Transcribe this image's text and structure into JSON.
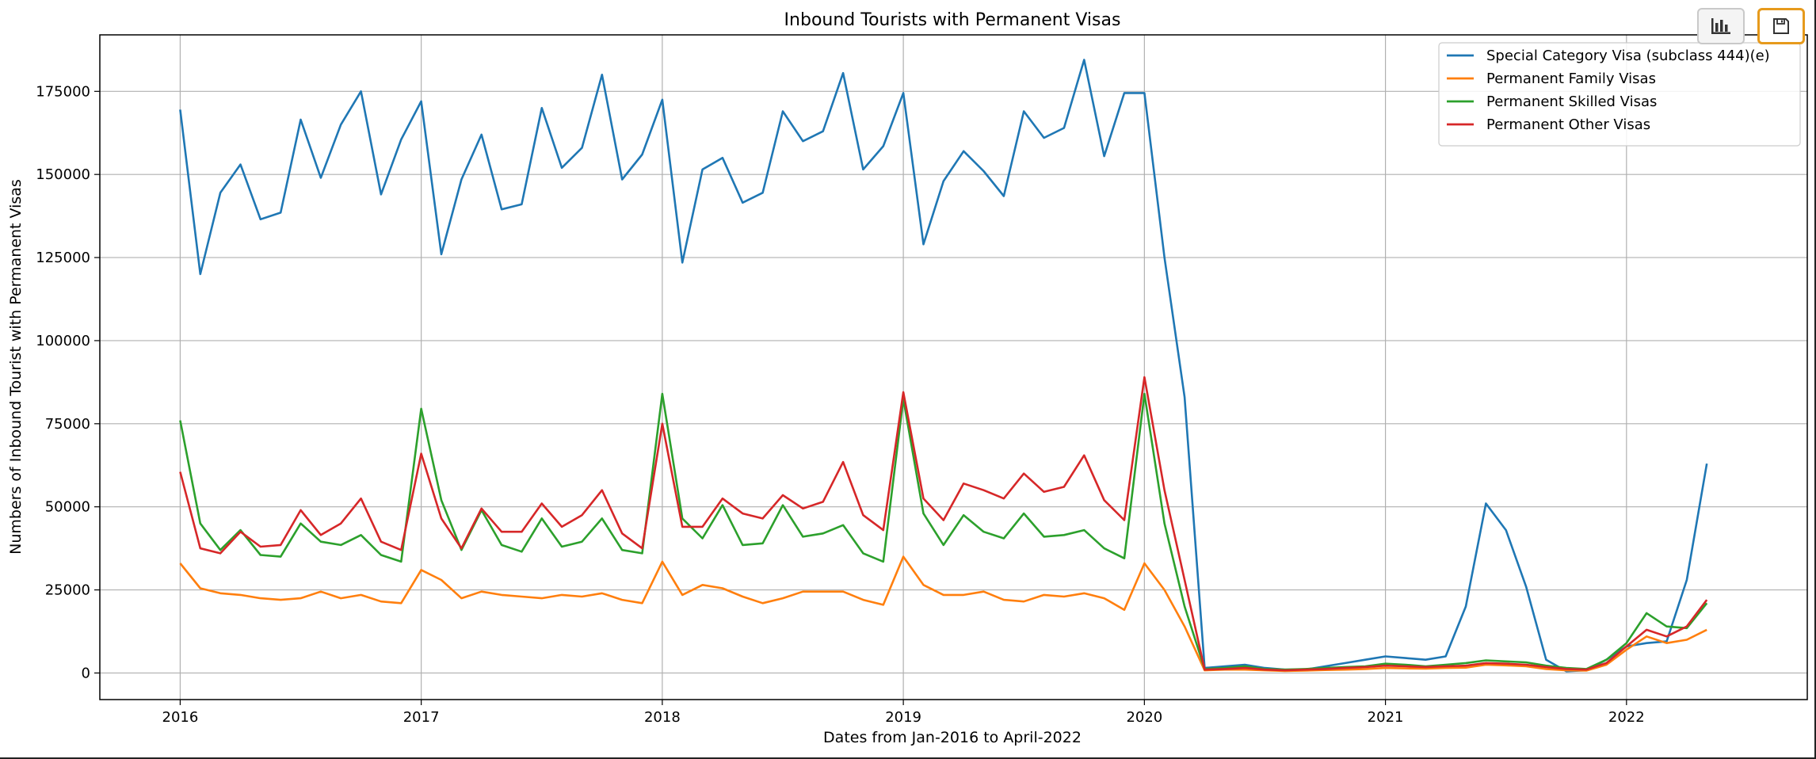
{
  "chart_data": {
    "type": "line",
    "title": "Inbound Tourists with Permanent Visas",
    "xlabel": "Dates from Jan-2016 to April-2022",
    "ylabel": "Numbers of Inbound Tourist with Permanent Visas",
    "x_start": "2016-01",
    "x_end": "2022-04",
    "xlim": [
      "2015-09",
      "2022-10"
    ],
    "ylim": [
      -8000,
      192000
    ],
    "x_ticks": [
      "2016",
      "2017",
      "2018",
      "2019",
      "2020",
      "2021",
      "2022"
    ],
    "y_ticks": [
      0,
      25000,
      50000,
      75000,
      100000,
      125000,
      150000,
      175000
    ],
    "y_tick_labels": [
      "0",
      "25000",
      "50000",
      "75000",
      "100000",
      "125000",
      "150000",
      "175000"
    ],
    "grid": true,
    "legend_position": "top-right",
    "series": [
      {
        "name": "Special Category Visa (subclass 444)(e)",
        "color": "#1f77b4",
        "values": [
          169500,
          120000,
          144500,
          153000,
          136500,
          138500,
          166500,
          149000,
          165000,
          175000,
          144000,
          160500,
          172000,
          126000,
          148500,
          162000,
          139500,
          141000,
          170000,
          152000,
          158000,
          180000,
          148500,
          156000,
          172500,
          123500,
          151500,
          155000,
          141500,
          144500,
          169000,
          160000,
          163000,
          180500,
          151500,
          158500,
          174500,
          129000,
          148000,
          157000,
          151000,
          143500,
          169000,
          161000,
          164000,
          184500,
          155500,
          174500,
          174500,
          125000,
          83000,
          1500,
          2000,
          2500,
          1500,
          1000,
          1000,
          2000,
          3000,
          4000,
          5000,
          4500,
          4000,
          5000,
          20000,
          51000,
          43000,
          26000,
          4000,
          500,
          800,
          4000,
          8000,
          9000,
          9500,
          28000,
          63000
        ]
      },
      {
        "name": "Permanent Family Visas",
        "color": "#ff7f0e",
        "values": [
          33000,
          25500,
          24000,
          23500,
          22500,
          22000,
          22500,
          24500,
          22500,
          23500,
          21500,
          21000,
          31000,
          28000,
          22500,
          24500,
          23500,
          23000,
          22500,
          23500,
          23000,
          24000,
          22000,
          21000,
          33500,
          23500,
          26500,
          25500,
          23000,
          21000,
          22500,
          24500,
          24500,
          24500,
          22000,
          20500,
          35000,
          26500,
          23500,
          23500,
          24500,
          22000,
          21500,
          23500,
          23000,
          24000,
          22500,
          19000,
          33000,
          25000,
          14000,
          800,
          1000,
          1000,
          800,
          600,
          700,
          900,
          1000,
          1200,
          1500,
          1400,
          1300,
          1500,
          1600,
          2500,
          2300,
          2000,
          1200,
          800,
          700,
          2500,
          7000,
          11000,
          9000,
          10000,
          13000
        ]
      },
      {
        "name": "Permanent Skilled Visas",
        "color": "#2ca02c",
        "values": [
          76000,
          45000,
          37000,
          43000,
          35500,
          35000,
          45000,
          39500,
          38500,
          41500,
          35500,
          33500,
          79500,
          52000,
          37000,
          49000,
          38500,
          36500,
          46500,
          38000,
          39500,
          46500,
          37000,
          36000,
          84000,
          46500,
          40500,
          50500,
          38500,
          39000,
          50500,
          41000,
          42000,
          44500,
          36000,
          33500,
          82500,
          48000,
          38500,
          47500,
          42500,
          40500,
          48000,
          41000,
          41500,
          43000,
          37500,
          34500,
          84000,
          45000,
          20000,
          1200,
          1500,
          2000,
          1200,
          1000,
          1200,
          1500,
          1800,
          2000,
          2800,
          2500,
          2000,
          2500,
          3000,
          3800,
          3500,
          3200,
          2200,
          1500,
          1200,
          4000,
          9000,
          18000,
          14000,
          13500,
          21000
        ]
      },
      {
        "name": "Permanent Other Visas",
        "color": "#d62728",
        "values": [
          60500,
          37500,
          36000,
          42500,
          38000,
          38500,
          49000,
          41500,
          45000,
          52500,
          39500,
          37000,
          66000,
          46500,
          37500,
          49500,
          42500,
          42500,
          51000,
          44000,
          47500,
          55000,
          42000,
          37500,
          75000,
          44000,
          44000,
          52500,
          48000,
          46500,
          53500,
          49500,
          51500,
          63500,
          47500,
          43000,
          84500,
          52500,
          46000,
          57000,
          55000,
          52500,
          60000,
          54500,
          56000,
          65500,
          52000,
          46000,
          89000,
          55000,
          28000,
          1000,
          1200,
          1500,
          1000,
          800,
          1000,
          1200,
          1500,
          1800,
          2200,
          2000,
          1800,
          2000,
          2200,
          3000,
          2800,
          2500,
          1800,
          1200,
          1000,
          3000,
          8000,
          13000,
          11000,
          14000,
          22000
        ]
      }
    ]
  },
  "toolbar": {
    "chart_icon": "bar-chart-icon",
    "save_icon": "save-icon"
  }
}
